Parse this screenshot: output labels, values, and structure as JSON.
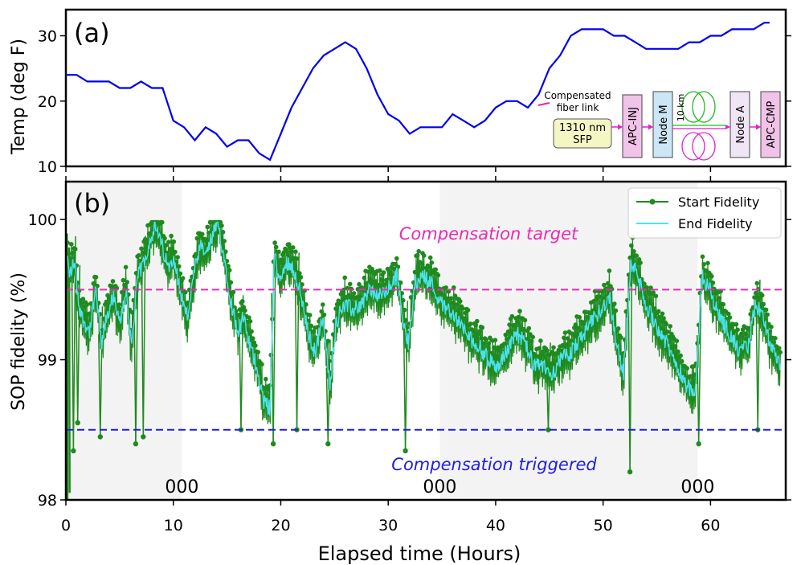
{
  "chart_data": [
    {
      "type": "line",
      "panel_label": "(a)",
      "ylabel": "Temp (deg F)",
      "xlim": [
        0,
        67
      ],
      "ylim": [
        10,
        34
      ],
      "yticks": [
        10,
        20,
        30
      ],
      "series": [
        {
          "color": "#0000ee",
          "x": [
            0,
            1,
            2,
            3,
            4,
            5,
            6,
            7,
            8,
            9,
            10,
            11,
            12,
            13,
            14,
            15,
            16,
            17,
            18,
            19,
            20,
            21,
            22,
            23,
            24,
            25,
            26,
            27,
            28,
            29,
            30,
            31,
            32,
            33,
            34,
            35,
            36,
            37,
            38,
            39,
            40,
            41,
            42,
            43,
            44,
            45,
            46,
            47,
            48,
            49,
            50,
            51,
            52,
            53,
            54,
            55,
            56,
            57,
            58,
            59,
            60,
            61,
            62,
            63,
            64,
            65,
            65.5
          ],
          "values": [
            24,
            24,
            23,
            23,
            23,
            22,
            22,
            23,
            22,
            22,
            17,
            16,
            14,
            16,
            15,
            13,
            14,
            14,
            12,
            11,
            15,
            19,
            22,
            25,
            27,
            28,
            29,
            28,
            25,
            21,
            18,
            17,
            15,
            16,
            16,
            16,
            18,
            17,
            16,
            17,
            19,
            20,
            20,
            19,
            21,
            25,
            27,
            30,
            31,
            31,
            31,
            30,
            30,
            29,
            28,
            28,
            28,
            28,
            29,
            29,
            30,
            30,
            31,
            31,
            31,
            32,
            32
          ]
        }
      ],
      "inset": {
        "label_fiber": "Compensated\nfiber link",
        "source": "1310 nm\nSFP",
        "boxes": [
          "APC-INJ",
          "Node M",
          "Node A",
          "APC-CMP"
        ],
        "spool": "10 km",
        "source_color": "#f4f7c4",
        "apc_color": "#f2c3e8",
        "node_m_color": "#cce6f6",
        "node_a_color": "#efe5f4",
        "arrow_color": "#e21fc7",
        "coil_top_color": "#22bb22",
        "coil_bottom_color": "#e21fc7"
      }
    },
    {
      "type": "line",
      "panel_label": "(b)",
      "ylabel": "SOP fidelity (%)",
      "xlabel": "Elapsed time (Hours)",
      "xlim": [
        0,
        67
      ],
      "ylim": [
        98,
        100.27
      ],
      "yticks": [
        98,
        99,
        100
      ],
      "xticks": [
        0,
        10,
        20,
        30,
        40,
        50,
        60
      ],
      "shaded_regions": [
        [
          0.3,
          10.8
        ],
        [
          34.8,
          58.8
        ]
      ],
      "region_labels": [
        {
          "x": 10.8,
          "text": "000"
        },
        {
          "x": 34.8,
          "text": "000"
        },
        {
          "x": 58.8,
          "text": "000"
        }
      ],
      "hlines": [
        {
          "y": 99.5,
          "label": "Compensation target",
          "color": "#e82cb6"
        },
        {
          "y": 98.5,
          "label": "Compensation triggered",
          "color": "#2020e0"
        }
      ],
      "legend_position": "top-right",
      "series": [
        {
          "name": "Start Fidelity",
          "color": "#1f8a1f"
        },
        {
          "name": "End Fidelity",
          "color": "#4ee1f0"
        }
      ],
      "trend": {
        "x": [
          0,
          0.3,
          0.8,
          1.2,
          1.5,
          2.2,
          2.8,
          3.3,
          3.8,
          4.4,
          5,
          5.6,
          6.1,
          6.7,
          7.3,
          7.8,
          8.3,
          9,
          9.5,
          10,
          10.6,
          11.3,
          11.9,
          12.5,
          13.1,
          13.7,
          14.2,
          14.8,
          15.4,
          16,
          16.5,
          17.1,
          17.8,
          18.4,
          19,
          19.4,
          19.9,
          20.6,
          21.2,
          21.9,
          22.5,
          23.2,
          23.9,
          24.6,
          25.1,
          25.8,
          26.7,
          27.5,
          28.3,
          29.2,
          30,
          30.8,
          31.4,
          31.9,
          32.5,
          33.2,
          34,
          34.9,
          35.8,
          36.7,
          37.6,
          38.4,
          39.3,
          40.1,
          41,
          41.9,
          42.8,
          43.6,
          44.5,
          45.2,
          46.1,
          47,
          47.9,
          48.8,
          49.7,
          50.6,
          51.3,
          51.9,
          52.6,
          53.2,
          53.9,
          54.6,
          55.3,
          56,
          56.6,
          57.3,
          57.9,
          58.6,
          59.2,
          59.9,
          60.6,
          61.3,
          62,
          62.7,
          63.5,
          64.2,
          64.9,
          65.6,
          66.4
        ],
        "values": [
          99.85,
          99.6,
          99.7,
          99.4,
          99.3,
          99.2,
          99.5,
          99.1,
          99.3,
          99.45,
          99.25,
          99.5,
          99.1,
          99.6,
          99.7,
          99.85,
          99.95,
          99.8,
          99.65,
          99.75,
          99.5,
          99.3,
          99.6,
          99.8,
          99.75,
          99.9,
          99.95,
          99.7,
          99.4,
          99.2,
          99.3,
          99.1,
          98.95,
          98.7,
          98.65,
          99.75,
          99.55,
          99.7,
          99.65,
          99.45,
          99.2,
          99.05,
          99.3,
          98.8,
          99.25,
          99.4,
          99.35,
          99.4,
          99.5,
          99.45,
          99.5,
          99.6,
          99.3,
          99.1,
          99.55,
          99.6,
          99.55,
          99.4,
          99.35,
          99.25,
          99.15,
          99.1,
          99.0,
          98.95,
          99.05,
          99.2,
          99.1,
          98.95,
          98.95,
          98.9,
          99.0,
          99.05,
          99.15,
          99.25,
          99.35,
          99.45,
          99.1,
          98.9,
          99.7,
          99.6,
          99.4,
          99.3,
          99.2,
          99.1,
          99.0,
          98.9,
          98.8,
          98.75,
          99.6,
          99.5,
          99.35,
          99.25,
          99.15,
          99.05,
          99.1,
          99.4,
          99.3,
          99.1,
          98.95
        ]
      },
      "dips": [
        {
          "x": 0.7,
          "y": 98.35
        },
        {
          "x": 1.1,
          "y": 98.55
        },
        {
          "x": 3.2,
          "y": 98.45
        },
        {
          "x": 6.5,
          "y": 98.4
        },
        {
          "x": 7.2,
          "y": 98.45
        },
        {
          "x": 16.3,
          "y": 98.5
        },
        {
          "x": 19.3,
          "y": 98.4
        },
        {
          "x": 21.5,
          "y": 98.5
        },
        {
          "x": 24.4,
          "y": 98.4
        },
        {
          "x": 31.6,
          "y": 98.35
        },
        {
          "x": 44.9,
          "y": 98.5
        },
        {
          "x": 52.5,
          "y": 98.2
        },
        {
          "x": 58.9,
          "y": 98.4
        },
        {
          "x": 64.4,
          "y": 98.5
        }
      ]
    }
  ]
}
